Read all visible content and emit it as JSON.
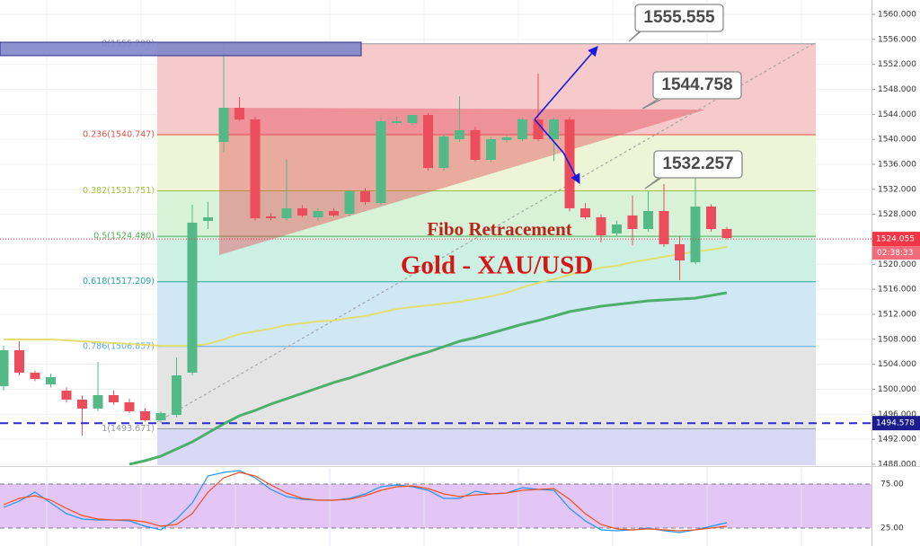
{
  "chart_data": {
    "type": "candlestick",
    "ylim": [
      1487.85,
      1562.3
    ],
    "yticks": [
      {
        "value": 1488,
        "label": "1488.000"
      },
      {
        "value": 1492,
        "label": "1492.000"
      },
      {
        "value": 1496,
        "label": "1496.000"
      },
      {
        "value": 1500,
        "label": "1500.000"
      },
      {
        "value": 1504,
        "label": "1504.000"
      },
      {
        "value": 1508,
        "label": "1508.000"
      },
      {
        "value": 1512,
        "label": "1512.000"
      },
      {
        "value": 1516,
        "label": "1516.000"
      },
      {
        "value": 1520,
        "label": "1520.000"
      },
      {
        "value": 1524,
        "label": "1524.000"
      },
      {
        "value": 1528,
        "label": "1528.000"
      },
      {
        "value": 1532,
        "label": "1532.000"
      },
      {
        "value": 1536,
        "label": "1536.000"
      },
      {
        "value": 1540,
        "label": "1540.000"
      },
      {
        "value": 1544,
        "label": "1544.000"
      },
      {
        "value": 1548,
        "label": "1548.000"
      },
      {
        "value": 1552,
        "label": "1552.000"
      },
      {
        "value": 1556,
        "label": "1556.000"
      },
      {
        "value": 1560,
        "label": "1560.000"
      }
    ],
    "grid": true,
    "candles": {
      "up_color": "#53b987",
      "down_color": "#eb4d5c",
      "open": [
        1500.5,
        1506.25,
        1502.66,
        1500.79,
        1499.78,
        1498.34,
        1496.91,
        1499.06,
        1497.91,
        1496.48,
        1495.04,
        1495.9,
        1502.66,
        1526.94,
        1539.59,
        1545.05,
        1543.18,
        1527.66,
        1527.38,
        1528.96,
        1527.52,
        1528.53,
        1528.09,
        1531.69,
        1529.82,
        1542.61,
        1542.61,
        1543.9,
        1535.42,
        1540.02,
        1541.46,
        1536.72,
        1539.88,
        1540.02,
        1543.18,
        1540.02,
        1543.18,
        1528.96,
        1527.52,
        1524.93,
        1527.81,
        1525.65,
        1528.53,
        1523.21,
        1520.33,
        1529.24,
        1525.65
      ],
      "high": [
        1507.0,
        1507.69,
        1503.0,
        1502.5,
        1500.3,
        1499.0,
        1504.38,
        1499.8,
        1498.5,
        1497.0,
        1496.5,
        1505.1,
        1529.53,
        1530.0,
        1555.4,
        1546.78,
        1543.6,
        1528.2,
        1536.72,
        1529.5,
        1529.0,
        1529.0,
        1531.9,
        1532.2,
        1543.5,
        1543.6,
        1543.9,
        1544.2,
        1540.8,
        1546.92,
        1542.0,
        1540.4,
        1540.6,
        1543.5,
        1550.51,
        1543.5,
        1543.6,
        1529.8,
        1528.0,
        1527.0,
        1531.0,
        1531.7,
        1532.84,
        1524.5,
        1534.27,
        1529.6,
        1526.0
      ],
      "low": [
        1499.8,
        1502.2,
        1501.3,
        1500.3,
        1497.9,
        1492.6,
        1496.5,
        1497.5,
        1496.2,
        1494.8,
        1494.6,
        1495.5,
        1502.2,
        1525.65,
        1537.87,
        1543.0,
        1527.0,
        1527.0,
        1527.0,
        1527.5,
        1527.0,
        1527.6,
        1527.7,
        1529.5,
        1529.5,
        1542.3,
        1542.3,
        1535.0,
        1535.0,
        1539.6,
        1536.5,
        1536.3,
        1539.5,
        1539.7,
        1539.7,
        1536.5,
        1528.5,
        1527.2,
        1523.5,
        1524.5,
        1523.0,
        1525.2,
        1522.8,
        1517.46,
        1520.0,
        1525.2,
        1524.0
      ],
      "close": [
        1506.25,
        1502.66,
        1501.65,
        1501.94,
        1498.34,
        1496.91,
        1499.06,
        1497.91,
        1496.48,
        1495.04,
        1496.19,
        1502.22,
        1526.66,
        1527.52,
        1545.05,
        1543.18,
        1527.38,
        1527.38,
        1528.96,
        1527.81,
        1528.53,
        1527.81,
        1531.69,
        1529.96,
        1542.9,
        1542.9,
        1543.9,
        1535.42,
        1540.45,
        1541.46,
        1536.72,
        1540.02,
        1540.31,
        1543.18,
        1540.02,
        1543.18,
        1528.96,
        1527.52,
        1524.64,
        1526.37,
        1525.65,
        1528.53,
        1523.21,
        1520.62,
        1529.24,
        1525.65,
        1524.21
      ]
    },
    "series": [
      {
        "color": "#e3df72",
        "values": [
          1507.97,
          1507.97,
          1507.97,
          1507.97,
          1507.83,
          1507.69,
          1507.54,
          1507.4,
          1507.25,
          1507.11,
          1506.97,
          1506.97,
          1506.97,
          1507.25,
          1507.97,
          1508.84,
          1509.27,
          1509.7,
          1510.27,
          1510.56,
          1510.85,
          1511.0,
          1511.42,
          1511.71,
          1512.28,
          1512.86,
          1513.15,
          1513.44,
          1513.72,
          1514.01,
          1514.44,
          1514.87,
          1515.45,
          1516.31,
          1517.03,
          1517.6,
          1518.32,
          1518.9,
          1519.47,
          1519.76,
          1520.33,
          1520.77,
          1521.2,
          1521.63,
          1522.06,
          1522.35,
          1522.78
        ]
      },
      {
        "color": "#4caf6a",
        "values": [
          null,
          null,
          null,
          null,
          null,
          null,
          null,
          null,
          1488.0,
          1488.57,
          1489.29,
          1490.44,
          1491.59,
          1493.03,
          1494.46,
          1495.76,
          1496.62,
          1497.63,
          1498.49,
          1499.35,
          1500.21,
          1501.08,
          1501.79,
          1502.66,
          1503.52,
          1504.38,
          1505.24,
          1505.96,
          1506.82,
          1507.69,
          1508.26,
          1508.98,
          1509.7,
          1510.42,
          1511.0,
          1511.71,
          1512.43,
          1512.86,
          1513.29,
          1513.58,
          1513.87,
          1514.15,
          1514.3,
          1514.44,
          1514.58,
          1515.02,
          1515.45
        ]
      }
    ],
    "fib_levels": [
      {
        "value": 1555.289,
        "label": "0(1555.289)",
        "color": "#9598a1",
        "fill": "#f6c9cb"
      },
      {
        "value": 1540.747,
        "label": "0.236(1540.747)",
        "color": "#e5534b",
        "fill": "#eef4d6"
      },
      {
        "value": 1531.751,
        "label": "0.382(1531.751)",
        "color": "#9fc43a",
        "fill": "#d8f2d8"
      },
      {
        "value": 1524.48,
        "label": "0.5(1524.480)",
        "color": "#4caf50",
        "fill": "#cdf0e4"
      },
      {
        "value": 1517.209,
        "label": "0.618(1517.209)",
        "color": "#26a69a",
        "fill": "#d0e7f5"
      },
      {
        "value": 1506.857,
        "label": "0.786(1506.857)",
        "color": "#5aa9e6",
        "fill": "#e4e4e4"
      },
      {
        "value": 1493.671,
        "label": "1(1493.671)",
        "color": "#9598a1",
        "fill": "#d9d9f6"
      }
    ],
    "annotations": [
      "Fibo Retracement",
      "Gold - XAU/USD"
    ],
    "callouts": [
      "1555.555",
      "1544.758",
      "1532.257"
    ],
    "last_price": 1524.055,
    "last_price_color": "#f23645",
    "countdown": "02:38:33",
    "horizontal_line": {
      "value": 1494.578,
      "color": "#2b2bd1",
      "label_color": "#1c1c8c"
    },
    "stochastic": {
      "ylim": [
        4.6,
        94.4
      ],
      "yticks": [
        {
          "value": 75,
          "label": "75.00"
        },
        {
          "value": 25,
          "label": "25.00"
        }
      ],
      "band_color": "#e3c6f5",
      "series": [
        {
          "color": "#2196f3",
          "values": [
            48.5,
            55.6,
            65.8,
            53.6,
            41.3,
            35.2,
            34.2,
            34.2,
            33.2,
            27.0,
            23.0,
            35.2,
            53.6,
            84.2,
            88.3,
            90.3,
            82.1,
            68.9,
            60.7,
            57.7,
            56.6,
            56.6,
            58.7,
            63.8,
            71.9,
            74.0,
            71.9,
            67.9,
            58.7,
            58.7,
            66.8,
            63.8,
            64.8,
            70.9,
            68.9,
            67.9,
            47.4,
            33.2,
            23.0,
            21.9,
            23.0,
            25.0,
            21.9,
            19.9,
            23.0,
            27.0,
            31.1
          ]
        },
        {
          "color": "#f4511e",
          "values": [
            51.5,
            58.7,
            61.7,
            56.6,
            47.4,
            39.3,
            35.2,
            34.2,
            34.2,
            32.1,
            27.0,
            29.1,
            41.3,
            65.8,
            82.1,
            88.3,
            84.2,
            74.0,
            64.8,
            58.7,
            56.6,
            56.6,
            57.7,
            61.7,
            67.9,
            71.9,
            72.9,
            69.9,
            63.8,
            60.7,
            62.7,
            63.8,
            64.8,
            67.9,
            68.9,
            69.9,
            57.7,
            41.3,
            29.1,
            24.0,
            23.0,
            24.0,
            23.0,
            21.9,
            23.0,
            25.0,
            27.0
          ]
        }
      ]
    }
  }
}
